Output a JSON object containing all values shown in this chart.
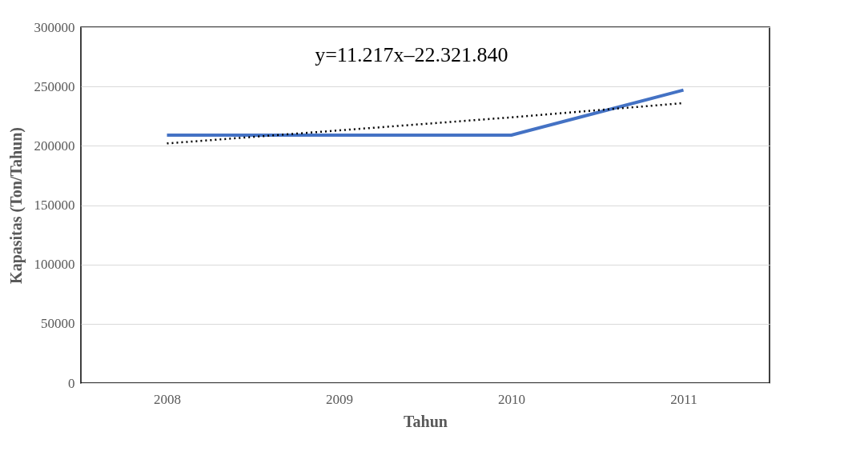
{
  "chart_data": {
    "type": "line",
    "xlabel": "Tahun",
    "ylabel": "Kapasitas (Ton/Tahun)",
    "categories": [
      "2008",
      "2009",
      "2010",
      "2011"
    ],
    "series": [
      {
        "color": "#4472c4",
        "values": [
          209000,
          209000,
          209000,
          247000
        ],
        "line_style": "solid"
      },
      {
        "type": "line",
        "color": "#000000",
        "line_style": "dotted",
        "values": [
          202000,
          213000,
          224000,
          236000
        ]
      }
    ],
    "ylim": [
      0,
      300000
    ],
    "yticks": [
      0,
      50000,
      100000,
      150000,
      200000,
      250000,
      300000
    ],
    "grid": "y",
    "marker": "none",
    "annotations": [
      "y=11.217x–22.321.840"
    ]
  }
}
